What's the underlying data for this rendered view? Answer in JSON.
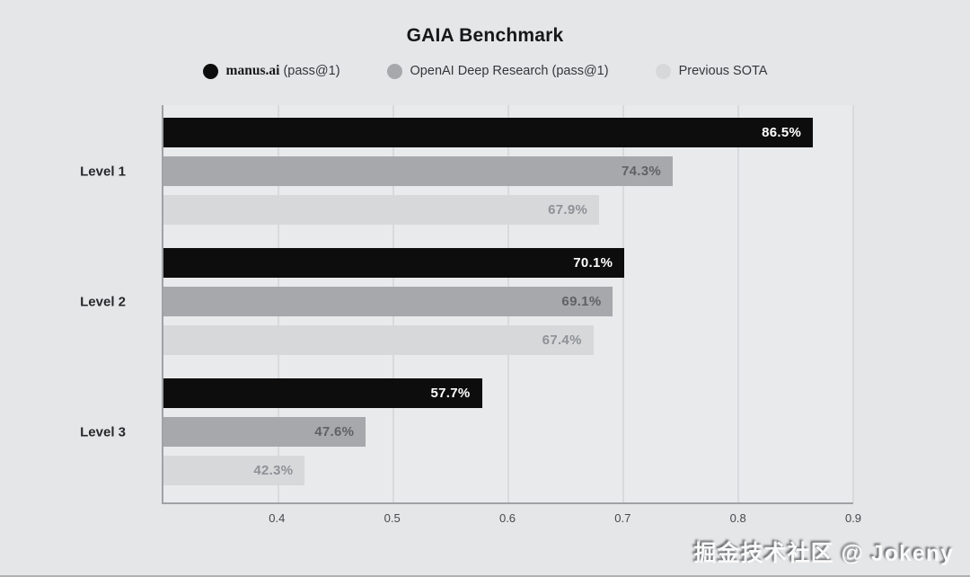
{
  "title": "GAIA Benchmark",
  "legend": {
    "items": [
      {
        "strong": "manus.ai",
        "rest": " (pass@1)",
        "color": "#0d0d0e"
      },
      {
        "strong": "",
        "rest": "OpenAI Deep Research (pass@1)",
        "color": "#a6a8ab"
      },
      {
        "strong": "",
        "rest": "Previous SOTA",
        "color": "#d6d8da"
      }
    ]
  },
  "watermark": "掘金技术社区 @ Jokeny",
  "chart_data": {
    "type": "bar",
    "orientation": "horizontal",
    "title": "GAIA Benchmark",
    "categories": [
      "Level 1",
      "Level 2",
      "Level 3"
    ],
    "series": [
      {
        "name": "manus.ai (pass@1)",
        "color": "#0d0d0e",
        "values": [
          0.865,
          0.701,
          0.577
        ],
        "value_labels": [
          "86.5%",
          "70.1%",
          "57.7%"
        ],
        "label_color": "#ffffff"
      },
      {
        "name": "OpenAI Deep Research (pass@1)",
        "color": "#a6a8ab",
        "values": [
          0.743,
          0.691,
          0.476
        ],
        "value_labels": [
          "74.3%",
          "69.1%",
          "47.6%"
        ],
        "label_color": "#5e6266"
      },
      {
        "name": "Previous SOTA",
        "color": "#d6d8da",
        "values": [
          0.679,
          0.674,
          0.423
        ],
        "value_labels": [
          "67.9%",
          "67.4%",
          "42.3%"
        ],
        "label_color": "#8e9296"
      }
    ],
    "xlim": [
      0.3,
      0.9
    ],
    "x_ticks": [
      0.4,
      0.5,
      0.6,
      0.7,
      0.8,
      0.9
    ],
    "x_tick_labels": [
      "0.4",
      "0.5",
      "0.6",
      "0.7",
      "0.8",
      "0.9"
    ],
    "xlabel": "",
    "ylabel": "",
    "grid": true,
    "legend_position": "top"
  }
}
